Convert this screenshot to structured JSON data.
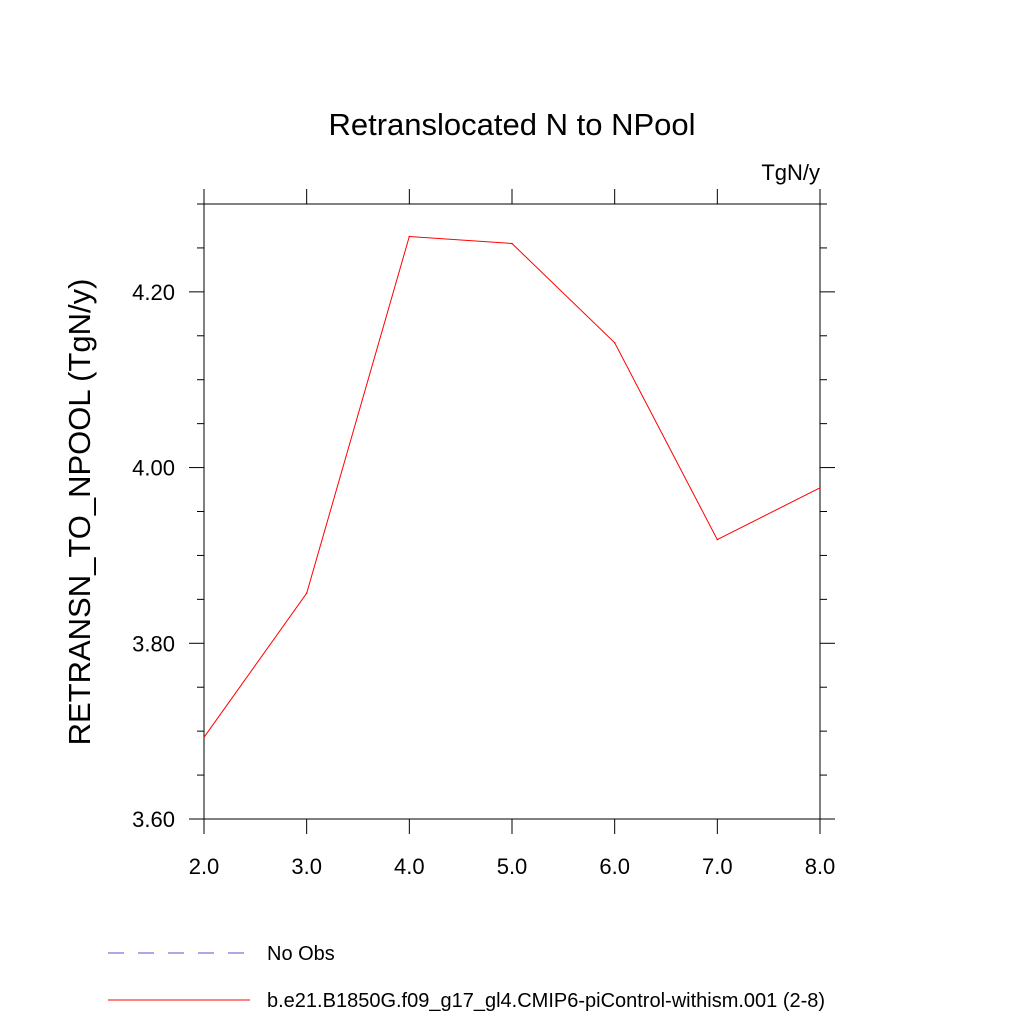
{
  "chart_data": {
    "type": "line",
    "title": "Retranslocated N to NPool",
    "units_label": "TgN/y",
    "ylabel": "RETRANSN_TO_NPOOL  (TgN/y)",
    "xlabel": "",
    "xlim": [
      2.0,
      8.0
    ],
    "ylim": [
      3.6,
      4.3
    ],
    "x_ticks": [
      2.0,
      3.0,
      4.0,
      5.0,
      6.0,
      7.0,
      8.0
    ],
    "x_tick_labels": [
      "2.0",
      "3.0",
      "4.0",
      "5.0",
      "6.0",
      "7.0",
      "8.0"
    ],
    "y_ticks": [
      3.6,
      3.8,
      4.0,
      4.2
    ],
    "y_tick_labels": [
      "3.60",
      "3.80",
      "4.00",
      "4.20"
    ],
    "y_minor_step": 0.05,
    "x": [
      2.0,
      3.0,
      4.0,
      5.0,
      6.0,
      7.0,
      8.0
    ],
    "series": [
      {
        "name": "b.e21.B1850G.f09_g17_gl4.CMIP6-piControl-withism.001 (2-8)",
        "values": [
          3.693,
          3.857,
          4.263,
          4.255,
          4.142,
          3.918,
          3.977
        ],
        "color": "#ff0000",
        "dash": "solid"
      }
    ],
    "legend": [
      {
        "label": "No Obs",
        "color": "#5a4fcf",
        "dash": "dashed"
      },
      {
        "label": "b.e21.B1850G.f09_g17_gl4.CMIP6-piControl-withism.001 (2-8)",
        "color": "#ff0000",
        "dash": "solid"
      }
    ],
    "legend_position": "bottom-left",
    "grid": false
  }
}
